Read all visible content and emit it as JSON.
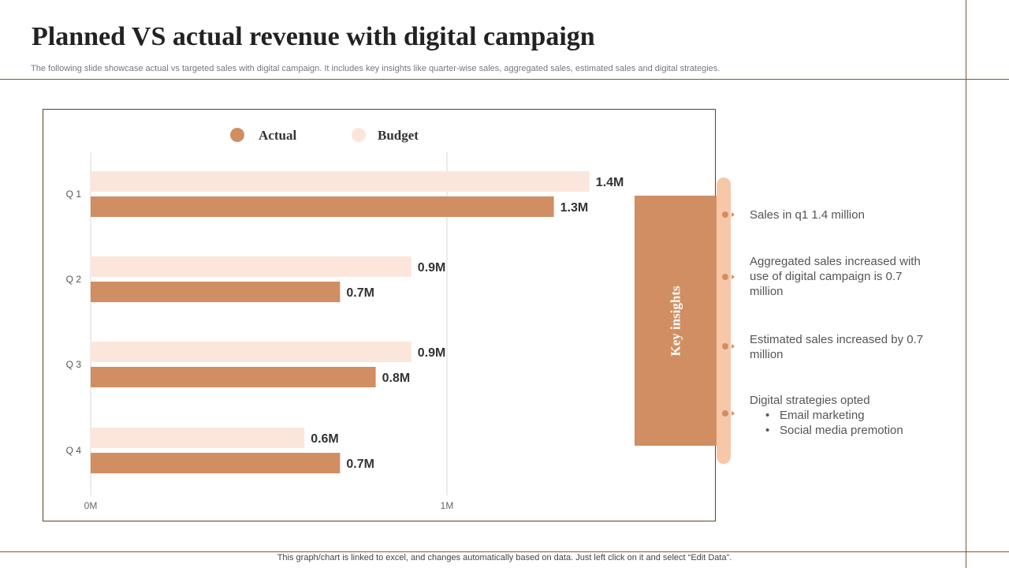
{
  "slide": {
    "title": "Planned VS actual revenue with digital campaign",
    "subtitle": "The following slide showcase actual vs targeted sales with digital campaign. It includes key insights like quarter-wise sales, aggregated sales, estimated sales and digital strategies.",
    "footer": "This graph/chart is linked to excel,  and changes automatically based on data. Just left click on it and select “Edit Data”."
  },
  "chart_data": {
    "type": "bar",
    "orientation": "horizontal",
    "title": "",
    "categories": [
      "Q 1",
      "Q 2",
      "Q 3",
      "Q 4"
    ],
    "series": [
      {
        "name": "Budget",
        "values": [
          1.4,
          0.9,
          0.9,
          0.6
        ],
        "labels": [
          "1.4M",
          "0.9M",
          "0.9M",
          "0.6M"
        ],
        "color": "#fce6dc"
      },
      {
        "name": "Actual",
        "values": [
          1.3,
          0.7,
          0.8,
          0.7
        ],
        "labels": [
          "1.3M",
          "0.7M",
          "0.8M",
          "0.7M"
        ],
        "color": "#d08e62"
      }
    ],
    "legend": [
      {
        "name": "Actual",
        "color": "#d08e62"
      },
      {
        "name": "Budget",
        "color": "#fce6dc"
      }
    ],
    "xticks": [
      "0M",
      "1M"
    ],
    "xlim": [
      0,
      1.5
    ],
    "grid": true,
    "legend_position": "top"
  },
  "insights": {
    "label": "Key insights",
    "items": [
      {
        "text": "Sales in q1 1.4 million"
      },
      {
        "text": "Aggregated sales increased with use of digital campaign is 0.7 million"
      },
      {
        "text": "Estimated sales increased by 0.7 million"
      },
      {
        "text": "Digital strategies opted",
        "bullets": [
          "Email marketing",
          "Social media premotion"
        ]
      }
    ]
  },
  "colors": {
    "accent": "#d08e62",
    "light": "#fce6dc",
    "rail": "#f6c8a8",
    "border": "#7a5a2e"
  }
}
